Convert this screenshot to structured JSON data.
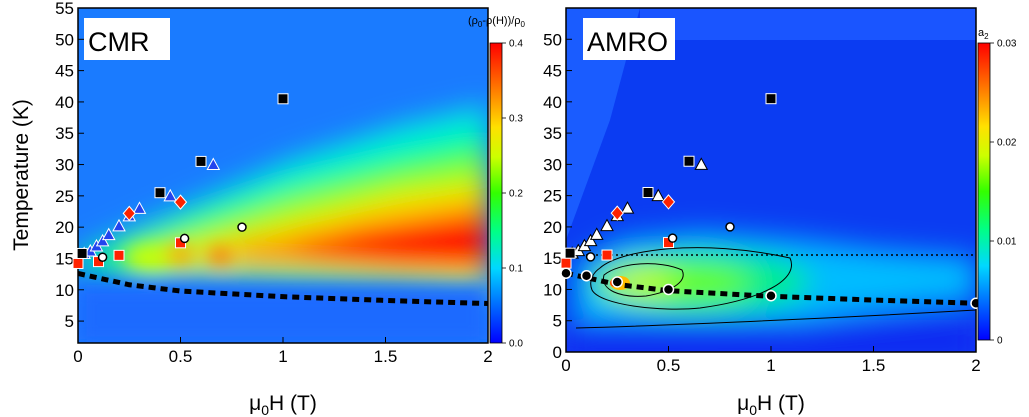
{
  "chart_data": [
    {
      "type": "heatmap",
      "title": "",
      "panel_label": "CMR",
      "xlabel": "μ0H (T)",
      "ylabel": "Temperature (K)",
      "xlim": [
        0,
        2
      ],
      "ylim": [
        1.5,
        55
      ],
      "x_ticks": [
        "0",
        "0.5",
        "1",
        "1.5",
        "2"
      ],
      "y_ticks": [
        "5",
        "10",
        "15",
        "20",
        "25",
        "30",
        "35",
        "40",
        "45",
        "50",
        "55"
      ],
      "colorbar": {
        "title": "(ρ0-ρ(H))/ρ0",
        "range": [
          0,
          0.4
        ],
        "ticks": [
          "0.0",
          "0.1",
          "0.2",
          "0.3",
          "0.4"
        ]
      },
      "dashed_line": [
        [
          0,
          12.6
        ],
        [
          0.25,
          10.8
        ],
        [
          0.5,
          9.8
        ],
        [
          1.0,
          8.9
        ],
        [
          1.5,
          8.3
        ],
        [
          2.0,
          7.8
        ]
      ],
      "markers": {
        "black_squares": [
          [
            0.02,
            15.8
          ],
          [
            0.4,
            25.5
          ],
          [
            0.6,
            30.5
          ],
          [
            1.0,
            40.5
          ]
        ],
        "blue_triangles": [
          [
            0.03,
            15.8
          ],
          [
            0.06,
            16.2
          ],
          [
            0.09,
            17.0
          ],
          [
            0.12,
            17.8
          ],
          [
            0.15,
            18.8
          ],
          [
            0.2,
            20.2
          ],
          [
            0.25,
            21.8
          ],
          [
            0.3,
            23.0
          ],
          [
            0.45,
            25.0
          ],
          [
            0.66,
            30.0
          ]
        ],
        "red_diamonds": [
          [
            0.25,
            22.2
          ],
          [
            0.5,
            24.0
          ]
        ],
        "red_squares": [
          [
            0.0,
            14.2
          ],
          [
            0.1,
            14.5
          ],
          [
            0.2,
            15.5
          ],
          [
            0.5,
            17.5
          ]
        ],
        "white_circles": [
          [
            0.12,
            15.2
          ],
          [
            0.52,
            18.2
          ],
          [
            0.8,
            20.0
          ]
        ]
      }
    },
    {
      "type": "heatmap",
      "title": "",
      "panel_label": "AMRO",
      "xlabel": "μ0H (T)",
      "ylabel": "",
      "xlim": [
        0,
        2
      ],
      "ylim": [
        0,
        55
      ],
      "x_ticks": [
        "0",
        "0.5",
        "1",
        "1.5",
        "2"
      ],
      "y_ticks": [
        "0",
        "5",
        "10",
        "15",
        "20",
        "25",
        "30",
        "35",
        "40",
        "45",
        "50"
      ],
      "colorbar": {
        "title": "a2",
        "range": [
          0,
          0.03
        ],
        "ticks": [
          "0",
          "0.01",
          "0.02",
          "0.03"
        ]
      },
      "dotted_line_T": 15.5,
      "dashed_line": [
        [
          0,
          12.6
        ],
        [
          0.25,
          10.8
        ],
        [
          0.5,
          9.8
        ],
        [
          1.0,
          8.9
        ],
        [
          1.5,
          8.3
        ],
        [
          2.0,
          7.8
        ]
      ],
      "markers": {
        "black_squares": [
          [
            0.02,
            15.8
          ],
          [
            0.4,
            25.5
          ],
          [
            0.6,
            30.5
          ],
          [
            1.0,
            40.5
          ]
        ],
        "white_triangles": [
          [
            0.03,
            15.8
          ],
          [
            0.06,
            16.2
          ],
          [
            0.09,
            17.0
          ],
          [
            0.12,
            17.8
          ],
          [
            0.15,
            18.8
          ],
          [
            0.2,
            20.2
          ],
          [
            0.25,
            21.8
          ],
          [
            0.3,
            23.0
          ],
          [
            0.45,
            25.0
          ],
          [
            0.66,
            30.0
          ]
        ],
        "red_diamonds": [
          [
            0.25,
            22.2
          ],
          [
            0.5,
            24.0
          ]
        ],
        "red_squares": [
          [
            0.0,
            14.2
          ],
          [
            0.2,
            15.5
          ],
          [
            0.5,
            17.5
          ]
        ],
        "white_circles": [
          [
            0.12,
            15.2
          ],
          [
            0.52,
            18.2
          ],
          [
            0.8,
            20.0
          ]
        ],
        "black_circles": [
          [
            0.0,
            12.6
          ],
          [
            0.1,
            12.2
          ],
          [
            0.25,
            11.2
          ],
          [
            0.5,
            10.0
          ],
          [
            1.0,
            9.0
          ],
          [
            2.0,
            7.8
          ]
        ]
      }
    }
  ]
}
